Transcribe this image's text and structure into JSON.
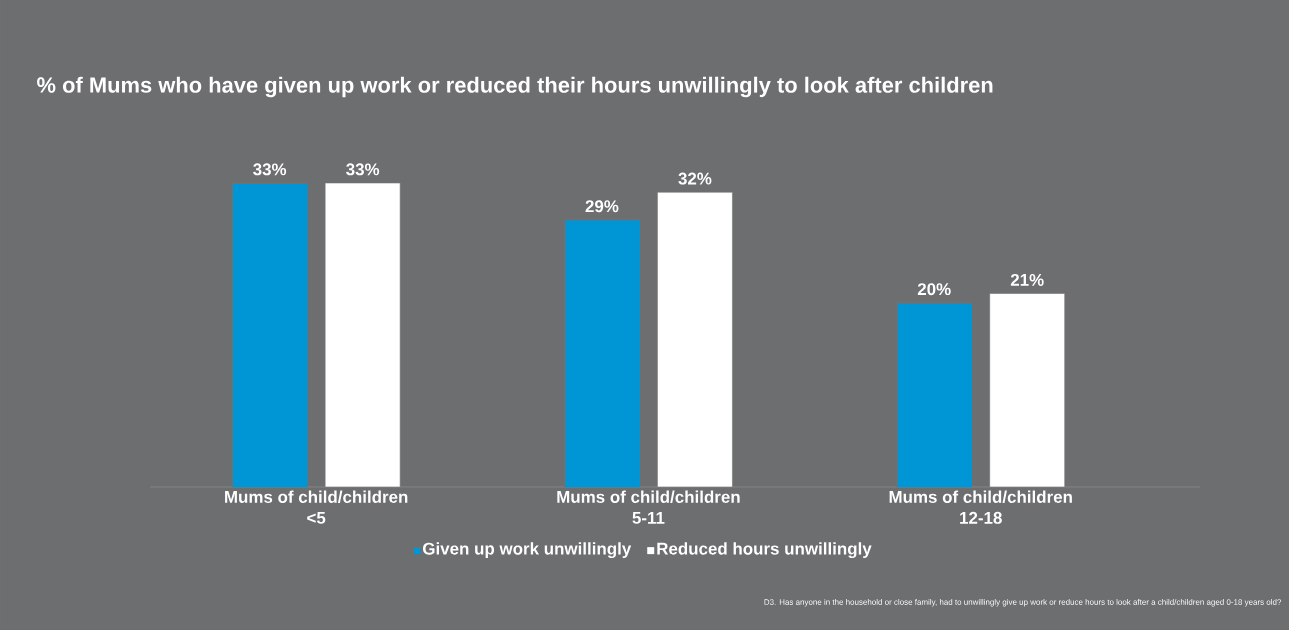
{
  "chart_data": {
    "type": "bar",
    "title": "% of Mums who have given up work or reduced their hours unwillingly to look after children",
    "categories": [
      "Mums of child/children <5",
      "Mums of child/children 5-11",
      "Mums of child/children 12-18"
    ],
    "series": [
      {
        "name": "Given up work unwillingly",
        "color": "#0096d6",
        "values": [
          33,
          29,
          20
        ],
        "value_labels": [
          "33%",
          "29%",
          "20%"
        ]
      },
      {
        "name": "Reduced hours unwillingly",
        "color": "#ffffff",
        "values": [
          33,
          32,
          21
        ],
        "value_labels": [
          "33%",
          "32%",
          "21%"
        ]
      }
    ],
    "legend": "bottom",
    "annotations": [
      "D3. Has anyone in the household or close family, had to unwillingly give up work or reduce hours to look after a child/children aged 0-18 years old?"
    ]
  }
}
